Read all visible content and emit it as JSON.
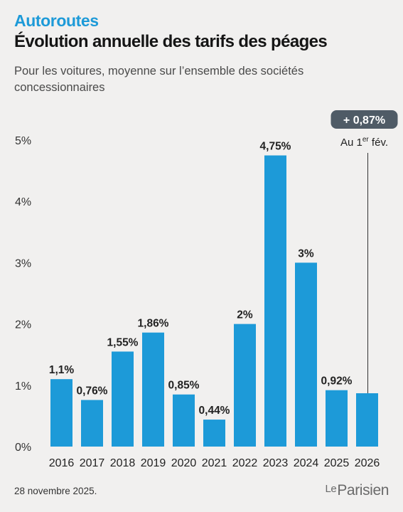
{
  "header": {
    "kicker": "Autoroutes",
    "title": "Évolution annuelle des tarifs des péages",
    "subtitle": "Pour les voitures, moyenne sur l’ensemble des sociétés concessionnaires"
  },
  "footer": {
    "date": "28 novembre 2025.",
    "logo_le": "Le",
    "logo_name": "Parisien"
  },
  "colors": {
    "bar": "#1d9ad8",
    "badge_bg": "#4f5b66",
    "badge_text": "#ffffff"
  },
  "chart_data": {
    "type": "bar",
    "categories": [
      "2016",
      "2017",
      "2018",
      "2019",
      "2020",
      "2021",
      "2022",
      "2023",
      "2024",
      "2025",
      "2026"
    ],
    "values": [
      1.1,
      0.76,
      1.55,
      1.86,
      0.85,
      0.44,
      2,
      4.75,
      3,
      0.92,
      0.87
    ],
    "data_labels": [
      "1,1%",
      "0,76%",
      "1,55%",
      "1,86%",
      "0,85%",
      "0,44%",
      "2%",
      "4,75%",
      "3%",
      "0,92%",
      ""
    ],
    "yticks": [
      0,
      1,
      2,
      3,
      4,
      5
    ],
    "ytick_labels": [
      "0%",
      "1%",
      "2%",
      "3%",
      "4%",
      "5%"
    ],
    "ylim": [
      0,
      5
    ],
    "grid": false,
    "annotation": {
      "category": "2026",
      "badge": "+ 0,87%",
      "note_prefix": "Au 1",
      "note_sup": "er",
      "note_suffix": " fév."
    },
    "xlabel": "",
    "ylabel": ""
  }
}
